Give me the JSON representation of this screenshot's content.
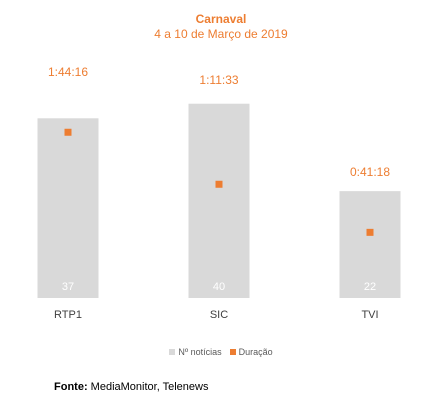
{
  "chart_data": {
    "type": "bar",
    "title": "Carnaval",
    "subtitle": "4 a 10 de Março de 2019",
    "categories": [
      "RTP1",
      "SIC",
      "TVI"
    ],
    "series": [
      {
        "name": "Nº notícias",
        "type": "bar",
        "values": [
          37,
          40,
          22
        ],
        "color": "#D9D9D9"
      },
      {
        "name": "Duração",
        "type": "marker",
        "values": [
          "1:44:16",
          "1:11:33",
          "0:41:18"
        ],
        "seconds": [
          6256,
          4293,
          2478
        ],
        "color": "#ED7D31"
      }
    ],
    "ylim": [
      0,
      42
    ],
    "y2lim": [
      0,
      7700
    ],
    "legend_position": "bottom",
    "grid": false,
    "source_label": "Fonte:",
    "source_text": "MediaMonitor, Telenews"
  }
}
